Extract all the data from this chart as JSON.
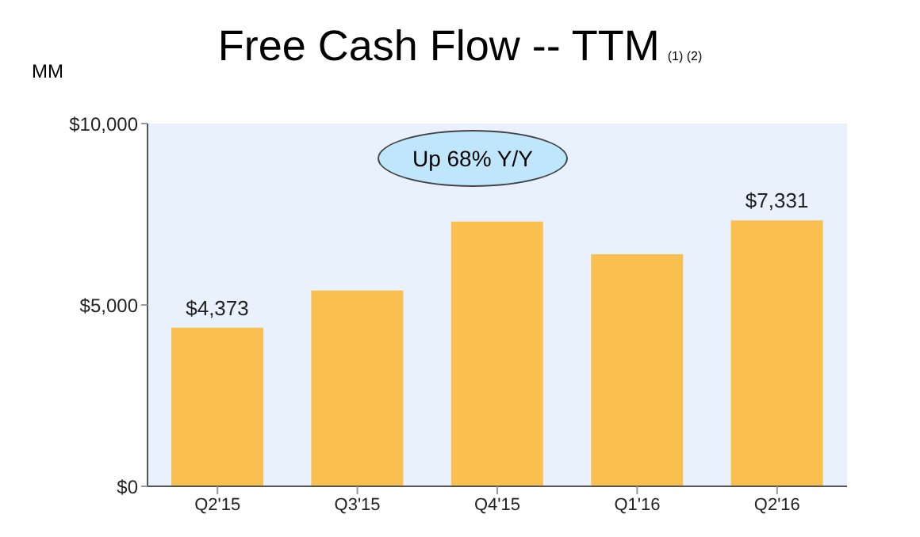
{
  "chart_data": {
    "type": "bar",
    "title": "Free Cash Flow -- TTM",
    "subtitle": "(1) (2)",
    "ylabel": "MM",
    "categories": [
      "Q2'15",
      "Q3'15",
      "Q4'15",
      "Q1'16",
      "Q2'16"
    ],
    "values": [
      4373,
      5400,
      7300,
      6400,
      7331
    ],
    "value_labels": [
      "$4,373",
      null,
      null,
      null,
      "$7,331"
    ],
    "color": "#f9bf4f",
    "ylim": [
      0,
      10000
    ],
    "yticks": [
      {
        "value": 0,
        "label": "$0"
      },
      {
        "value": 5000,
        "label": "$5,000"
      },
      {
        "value": 10000,
        "label": "$10,000"
      }
    ],
    "annotations": [
      "Up 68%  Y/Y"
    ],
    "grid": false,
    "legend": false
  }
}
